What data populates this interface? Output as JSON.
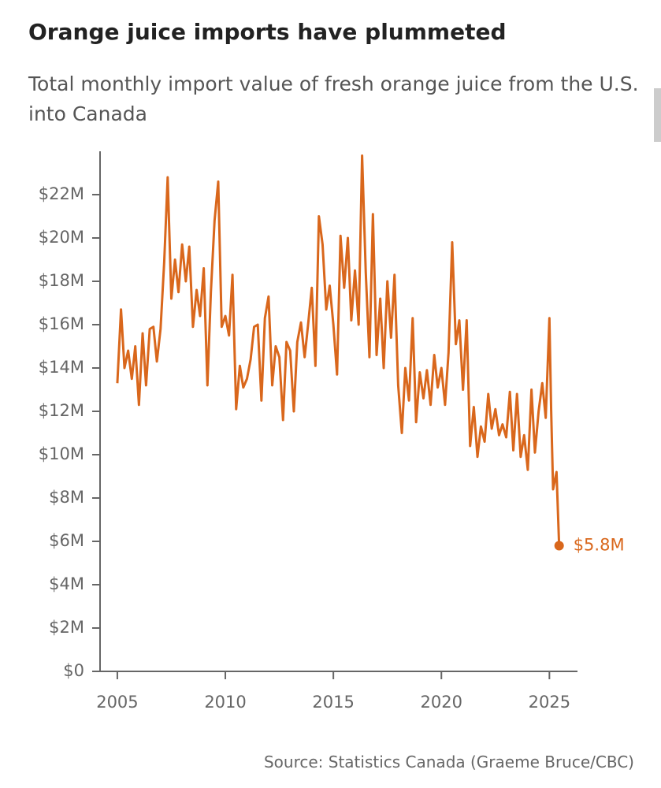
{
  "chart_data": {
    "type": "line",
    "title": "Orange juice imports have plummeted",
    "subtitle": "Total monthly import value of fresh orange juice from the U.S. into Canada",
    "source": "Source: Statistics Canada (Graeme Bruce/CBC)",
    "xlim": [
      2004.2,
      2026.3
    ],
    "xticks": [
      2005,
      2010,
      2015,
      2020,
      2025
    ],
    "ylim": [
      0,
      24
    ],
    "yticks": [
      {
        "value": 0,
        "label": "$0"
      },
      {
        "value": 2,
        "label": "$2M"
      },
      {
        "value": 4,
        "label": "$4M"
      },
      {
        "value": 6,
        "label": "$6M"
      },
      {
        "value": 8,
        "label": "$8M"
      },
      {
        "value": 10,
        "label": "$10M"
      },
      {
        "value": 12,
        "label": "$12M"
      },
      {
        "value": 14,
        "label": "$14M"
      },
      {
        "value": 16,
        "label": "$16M"
      },
      {
        "value": 18,
        "label": "$18M"
      },
      {
        "value": 20,
        "label": "$20M"
      },
      {
        "value": 22,
        "label": "$22M"
      }
    ],
    "x": [
      2005,
      2005.17,
      2005.33,
      2005.5,
      2005.67,
      2005.83,
      2006,
      2006.17,
      2006.33,
      2006.5,
      2006.67,
      2006.83,
      2007,
      2007.17,
      2007.33,
      2007.5,
      2007.67,
      2007.83,
      2008,
      2008.17,
      2008.33,
      2008.5,
      2008.67,
      2008.83,
      2009,
      2009.17,
      2009.33,
      2009.5,
      2009.67,
      2009.83,
      2010,
      2010.17,
      2010.33,
      2010.5,
      2010.67,
      2010.83,
      2011,
      2011.17,
      2011.33,
      2011.5,
      2011.67,
      2011.83,
      2012,
      2012.17,
      2012.33,
      2012.5,
      2012.67,
      2012.83,
      2013,
      2013.17,
      2013.33,
      2013.5,
      2013.67,
      2013.83,
      2014,
      2014.17,
      2014.33,
      2014.5,
      2014.67,
      2014.83,
      2015,
      2015.17,
      2015.33,
      2015.5,
      2015.67,
      2015.83,
      2016,
      2016.17,
      2016.33,
      2016.5,
      2016.67,
      2016.83,
      2017,
      2017.17,
      2017.33,
      2017.5,
      2017.67,
      2017.83,
      2018,
      2018.17,
      2018.33,
      2018.5,
      2018.67,
      2018.83,
      2019,
      2019.17,
      2019.33,
      2019.5,
      2019.67,
      2019.83,
      2020,
      2020.17,
      2020.33,
      2020.5,
      2020.67,
      2020.83,
      2021,
      2021.17,
      2021.33,
      2021.5,
      2021.67,
      2021.83,
      2022,
      2022.17,
      2022.33,
      2022.5,
      2022.67,
      2022.83,
      2023,
      2023.17,
      2023.33,
      2023.5,
      2023.67,
      2023.83,
      2024,
      2024.17,
      2024.33,
      2024.5,
      2024.67,
      2024.83,
      2025,
      2025.08,
      2025.17,
      2025.33,
      2025.45
    ],
    "series": [
      {
        "color": "#d9671c",
        "values": [
          13.3,
          16.7,
          14.0,
          14.8,
          13.5,
          15.0,
          12.3,
          15.6,
          13.2,
          15.8,
          15.9,
          14.3,
          15.8,
          18.9,
          22.8,
          17.2,
          19.0,
          17.5,
          19.7,
          18.0,
          19.6,
          15.9,
          17.6,
          16.4,
          18.6,
          13.2,
          17.5,
          20.8,
          22.6,
          15.9,
          16.4,
          15.5,
          18.3,
          12.1,
          14.1,
          13.1,
          13.5,
          14.4,
          15.9,
          16.0,
          12.5,
          16.3,
          17.3,
          13.2,
          15.0,
          14.5,
          11.6,
          15.2,
          14.8,
          12.0,
          15.2,
          16.1,
          14.5,
          16.0,
          17.7,
          14.1,
          21.0,
          19.7,
          16.7,
          17.8,
          16.0,
          13.7,
          20.1,
          17.7,
          20.0,
          16.2,
          18.5,
          16.0,
          23.8,
          18.4,
          14.5,
          21.1,
          14.6,
          17.2,
          14.0,
          18.0,
          15.4,
          18.3,
          13.2,
          11.0,
          14.0,
          12.5,
          16.3,
          11.5,
          13.8,
          12.6,
          13.9,
          12.3,
          14.6,
          13.1,
          14.0,
          12.3,
          14.7,
          19.8,
          15.1,
          16.2,
          13.0,
          16.2,
          10.4,
          12.2,
          9.9,
          11.3,
          10.6,
          12.8,
          11.2,
          12.1,
          10.9,
          11.4,
          10.8,
          12.9,
          10.2,
          12.8,
          9.9,
          10.9,
          9.3,
          13.0,
          10.1,
          12.0,
          13.3,
          11.7,
          16.3,
          12.1,
          8.4,
          9.2,
          5.8
        ]
      }
    ],
    "annotations": [
      {
        "text": "$5.8M",
        "x": 2025.45,
        "y": 5.8
      }
    ]
  }
}
